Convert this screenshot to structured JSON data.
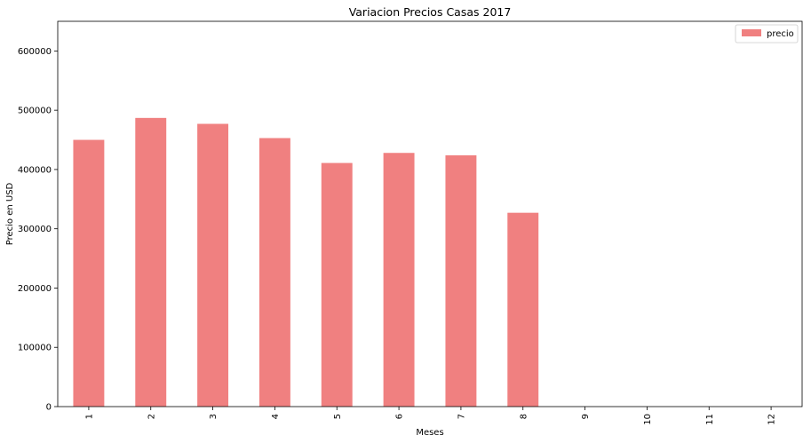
{
  "chart_data": {
    "type": "bar",
    "title": "Variacion Precios Casas 2017",
    "xlabel": "Meses",
    "ylabel": "Precio en USD",
    "categories": [
      "1",
      "2",
      "3",
      "4",
      "5",
      "6",
      "7",
      "8",
      "9",
      "10",
      "11",
      "12"
    ],
    "series": [
      {
        "name": "precio",
        "color": "#f08080",
        "values": [
          450000,
          487000,
          477000,
          453000,
          411000,
          428000,
          424000,
          327000,
          0,
          0,
          0,
          0
        ]
      }
    ],
    "ylim": [
      0,
      650000
    ],
    "yticks": [
      0,
      100000,
      200000,
      300000,
      400000,
      500000,
      600000
    ],
    "ytick_labels": [
      "0",
      "100000",
      "200000",
      "300000",
      "400000",
      "500000",
      "600000"
    ],
    "legend": "top-right",
    "grid": false
  }
}
